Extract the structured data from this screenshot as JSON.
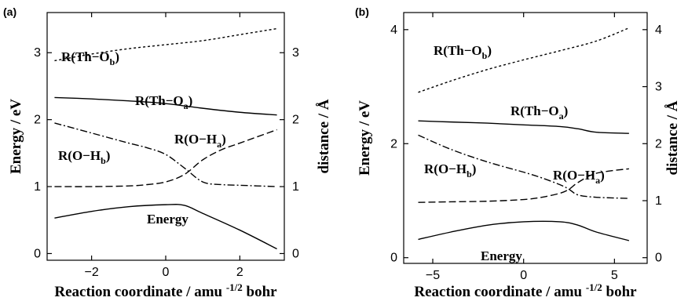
{
  "chart_data": [
    {
      "type": "line",
      "panel_label": "(a)",
      "xlabel": "Reaction coordinate / amu",
      "xlabel_sup": "-1/2",
      "xlabel_tail": " bohr",
      "ylabel_left": "Energy / eV",
      "ylabel_right": "distance / Å",
      "xlim": [
        -3.2,
        3.2
      ],
      "ylim_left": [
        -0.1,
        3.6
      ],
      "ylim_right": [
        -0.1,
        3.6
      ],
      "xticks": [
        -2,
        0,
        2
      ],
      "yticks_left": [
        0,
        1,
        2,
        3
      ],
      "yticks_right": [
        0,
        1,
        2,
        3
      ],
      "series": [
        {
          "label": "R(Th-O",
          "label_sub": "b",
          "label_end": ")",
          "axis": "right",
          "dash": "3,3",
          "x": [
            -3,
            -2,
            -1,
            0,
            1,
            2,
            3
          ],
          "y": [
            2.88,
            2.98,
            3.06,
            3.12,
            3.18,
            3.27,
            3.36
          ]
        },
        {
          "label": "R(Th-O",
          "label_sub": "a",
          "label_end": ")",
          "axis": "right",
          "dash": "",
          "x": [
            -3,
            -2,
            -1,
            0,
            1,
            2,
            3
          ],
          "y": [
            2.33,
            2.31,
            2.28,
            2.24,
            2.17,
            2.11,
            2.07
          ]
        },
        {
          "label": "R(O-H",
          "label_sub": "a",
          "label_end": ")",
          "axis": "right",
          "dash": "9,4",
          "x": [
            -3,
            -2,
            -1,
            -0.5,
            0,
            0.5,
            1,
            1.5,
            2,
            3
          ],
          "y": [
            1.0,
            1.0,
            1.01,
            1.03,
            1.07,
            1.18,
            1.4,
            1.55,
            1.65,
            1.85
          ]
        },
        {
          "label": "R(O-H",
          "label_sub": "b",
          "label_end": ")",
          "axis": "right",
          "dash": "9,3,2,3",
          "x": [
            -3,
            -2,
            -1,
            -0.5,
            0,
            0.5,
            1,
            1.5,
            2,
            3
          ],
          "y": [
            1.95,
            1.8,
            1.65,
            1.58,
            1.48,
            1.28,
            1.07,
            1.03,
            1.02,
            1.0
          ]
        },
        {
          "label": "Energy",
          "label_sub": "",
          "label_end": "",
          "axis": "left",
          "dash": "",
          "x": [
            -3,
            -2,
            -1,
            0,
            0.5,
            1,
            2,
            3
          ],
          "y": [
            0.53,
            0.63,
            0.7,
            0.73,
            0.72,
            0.6,
            0.35,
            0.07
          ]
        }
      ]
    },
    {
      "type": "line",
      "panel_label": "(b)",
      "xlabel": "Reaction coordinate / amu",
      "xlabel_sup": "-1/2",
      "xlabel_tail": " bohr",
      "ylabel_left": "Energy / eV",
      "ylabel_right": "distance / Å",
      "xlim": [
        -6.6,
        6.8
      ],
      "ylim_left": [
        -0.1,
        4.3
      ],
      "ylim_right": [
        -0.1,
        4.3
      ],
      "xticks": [
        -5,
        0,
        5
      ],
      "yticks_left": [
        0,
        2,
        4
      ],
      "yticks_right": [
        0,
        1,
        2,
        3,
        4
      ],
      "series": [
        {
          "label": "R(Th-O",
          "label_sub": "b",
          "label_end": ")",
          "axis": "right",
          "dash": "3,3",
          "x": [
            -5.8,
            -4,
            -2,
            0,
            2,
            4,
            5.8
          ],
          "y": [
            2.9,
            3.1,
            3.3,
            3.47,
            3.63,
            3.8,
            4.03
          ]
        },
        {
          "label": "R(Th-O",
          "label_sub": "a",
          "label_end": ")",
          "axis": "right",
          "dash": "",
          "x": [
            -5.8,
            -4,
            -2,
            0,
            2,
            3,
            4,
            5.8
          ],
          "y": [
            2.4,
            2.38,
            2.36,
            2.33,
            2.3,
            2.26,
            2.2,
            2.18
          ]
        },
        {
          "label": "R(O-H",
          "label_sub": "a",
          "label_end": ")",
          "axis": "right",
          "dash": "9,4",
          "x": [
            -5.8,
            -4,
            -2,
            0,
            1,
            2,
            2.5,
            3,
            4,
            5.8
          ],
          "y": [
            0.97,
            0.98,
            0.99,
            1.02,
            1.06,
            1.13,
            1.2,
            1.32,
            1.48,
            1.56
          ]
        },
        {
          "label": "R(O-H",
          "label_sub": "b",
          "label_end": ")",
          "axis": "right",
          "dash": "9,3,2,3",
          "x": [
            -5.8,
            -4,
            -2,
            0,
            1,
            2,
            2.5,
            3,
            4,
            5.8
          ],
          "y": [
            2.15,
            1.9,
            1.68,
            1.5,
            1.4,
            1.28,
            1.2,
            1.1,
            1.06,
            1.04
          ]
        },
        {
          "label": "Energy",
          "label_sub": "",
          "label_end": "",
          "axis": "left",
          "dash": "",
          "x": [
            -5.8,
            -4,
            -2,
            0,
            2,
            3,
            4,
            5.8
          ],
          "y": [
            0.32,
            0.45,
            0.57,
            0.63,
            0.63,
            0.57,
            0.45,
            0.3
          ]
        }
      ]
    }
  ]
}
